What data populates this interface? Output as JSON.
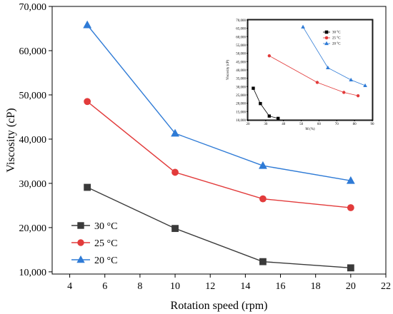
{
  "chart_data": [
    {
      "type": "line",
      "title": "",
      "xlabel": "Rotation speed (rpm)",
      "ylabel": "Viscosity (cP)",
      "xlim": [
        3,
        22
      ],
      "ylim": [
        9500,
        70000
      ],
      "x_ticks": [
        4,
        6,
        8,
        10,
        12,
        14,
        16,
        18,
        20,
        22
      ],
      "y_ticks": [
        10000,
        20000,
        30000,
        40000,
        50000,
        60000,
        70000
      ],
      "x_tick_labels": [
        "4",
        "6",
        "8",
        "10",
        "12",
        "14",
        "16",
        "18",
        "20",
        "22"
      ],
      "y_tick_labels": [
        "10,000",
        "20,000",
        "30,000",
        "40,000",
        "50,000",
        "60,000",
        "70,000"
      ],
      "grid": false,
      "legend_position": "bottom-left",
      "series": [
        {
          "name": "30 °C",
          "color": "#3a3a3a",
          "marker": "square",
          "x": [
            5,
            10,
            15,
            20
          ],
          "y": [
            29100,
            19800,
            12300,
            10900
          ]
        },
        {
          "name": "25 °C",
          "color": "#e23b3b",
          "marker": "circle",
          "x": [
            5,
            10,
            15,
            20
          ],
          "y": [
            48500,
            32500,
            26500,
            24500
          ]
        },
        {
          "name": "20 °C",
          "color": "#2f7bd6",
          "marker": "triangle",
          "x": [
            5,
            10,
            15,
            20
          ],
          "y": [
            65800,
            41300,
            34000,
            30600
          ]
        }
      ]
    },
    {
      "type": "line",
      "title": "",
      "xlabel": "M (%)",
      "ylabel": "Viscosity (cP)",
      "xlim": [
        20,
        90
      ],
      "ylim": [
        10000,
        70000
      ],
      "x_ticks": [
        20,
        30,
        40,
        50,
        60,
        70,
        80,
        90
      ],
      "y_ticks": [
        10000,
        15000,
        20000,
        25000,
        30000,
        35000,
        40000,
        45000,
        50000,
        55000,
        60000,
        65000,
        70000
      ],
      "x_tick_labels": [
        "20",
        "30",
        "40",
        "50",
        "60",
        "70",
        "80",
        "90"
      ],
      "y_tick_labels": [
        "10,000",
        "15,000",
        "20,000",
        "25,000",
        "30,000",
        "35,000",
        "40,000",
        "45,000",
        "50,000",
        "55,000",
        "60,000",
        "65,000",
        "70,000"
      ],
      "grid": false,
      "legend_position": "top-left",
      "series": [
        {
          "name": "30 °C",
          "color": "#000000",
          "marker": "square",
          "x": [
            23,
            27,
            32,
            37
          ],
          "y": [
            29000,
            19800,
            12300,
            10900
          ]
        },
        {
          "name": "25 °C",
          "color": "#e23b3b",
          "marker": "circle",
          "x": [
            32,
            59,
            74,
            82
          ],
          "y": [
            48500,
            32500,
            26500,
            24500
          ]
        },
        {
          "name": "20 °C",
          "color": "#2f7bd6",
          "marker": "triangle",
          "x": [
            51,
            65,
            78,
            86
          ],
          "y": [
            65800,
            41300,
            34000,
            30600
          ]
        }
      ]
    }
  ]
}
